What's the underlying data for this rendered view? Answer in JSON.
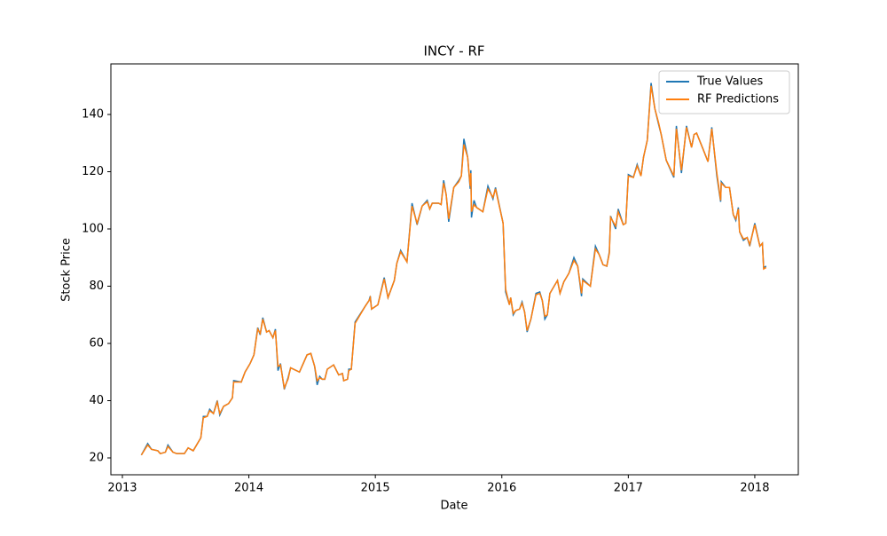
{
  "chart_data": {
    "type": "line",
    "title": "INCY - RF",
    "xlabel": "Date",
    "ylabel": "Stock Price",
    "x": [
      2013.15,
      2013.2,
      2013.23,
      2013.28,
      2013.3,
      2013.34,
      2013.36,
      2013.4,
      2013.43,
      2013.49,
      2013.52,
      2013.56,
      2013.62,
      2013.64,
      2013.67,
      2013.69,
      2013.72,
      2013.75,
      2013.77,
      2013.8,
      2013.84,
      2013.87,
      2013.88,
      2013.94,
      2013.97,
      2014.01,
      2014.04,
      2014.07,
      2014.09,
      2014.11,
      2014.14,
      2014.16,
      2014.19,
      2014.21,
      2014.23,
      2014.25,
      2014.28,
      2014.31,
      2014.33,
      2014.4,
      2014.46,
      2014.49,
      2014.52,
      2014.54,
      2014.56,
      2014.58,
      2014.6,
      2014.62,
      2014.67,
      2014.71,
      2014.74,
      2014.75,
      2014.78,
      2014.79,
      2014.81,
      2014.84,
      2014.92,
      2014.95,
      2014.96,
      2014.97,
      2015.02,
      2015.07,
      2015.1,
      2015.15,
      2015.17,
      2015.2,
      2015.25,
      2015.29,
      2015.33,
      2015.37,
      2015.41,
      2015.43,
      2015.45,
      2015.5,
      2015.52,
      2015.54,
      2015.56,
      2015.58,
      2015.62,
      2015.66,
      2015.68,
      2015.7,
      2015.73,
      2015.75,
      2015.755,
      2015.76,
      2015.78,
      2015.8,
      2015.85,
      2015.89,
      2015.93,
      2015.95,
      2016.01,
      2016.03,
      2016.06,
      2016.07,
      2016.09,
      2016.11,
      2016.14,
      2016.16,
      2016.18,
      2016.2,
      2016.23,
      2016.27,
      2016.3,
      2016.32,
      2016.34,
      2016.36,
      2016.38,
      2016.44,
      2016.46,
      2016.49,
      2016.53,
      2016.57,
      2016.6,
      2016.63,
      2016.64,
      2016.7,
      2016.74,
      2016.77,
      2016.8,
      2016.83,
      2016.85,
      2016.86,
      2016.9,
      2016.92,
      2016.96,
      2016.98,
      2017.0,
      2017.04,
      2017.07,
      2017.1,
      2017.12,
      2017.15,
      2017.18,
      2017.21,
      2017.24,
      2017.26,
      2017.3,
      2017.36,
      2017.38,
      2017.42,
      2017.46,
      2017.5,
      2017.52,
      2017.54,
      2017.59,
      2017.63,
      2017.66,
      2017.7,
      2017.73,
      2017.735,
      2017.77,
      2017.8,
      2017.83,
      2017.85,
      2017.87,
      2017.88,
      2017.91,
      2017.94,
      2017.96,
      2018.0,
      2018.04,
      2018.06,
      2018.07,
      2018.09
    ],
    "series": [
      {
        "name": "True Values",
        "color": "#1f77b4",
        "values": [
          21,
          25,
          23,
          22.5,
          21.5,
          22,
          24.5,
          22,
          21.5,
          21.5,
          23.5,
          22.5,
          27,
          34.5,
          34.5,
          37,
          35.5,
          40,
          35,
          38,
          39,
          41,
          47,
          46.5,
          50,
          53,
          56,
          65.5,
          63,
          69,
          64,
          64.5,
          62,
          65,
          50.5,
          53,
          44,
          48,
          51.5,
          50,
          56,
          56.5,
          52,
          45.5,
          48.5,
          47.5,
          47.5,
          51,
          52.5,
          49,
          49.5,
          47,
          47.5,
          51,
          51,
          67.5,
          73,
          75,
          76.5,
          72,
          73.5,
          83,
          76,
          82,
          88,
          92.5,
          88.5,
          109,
          101.5,
          108,
          110,
          107,
          109,
          109,
          108.5,
          117,
          112,
          102.5,
          114.5,
          117,
          118.5,
          131.5,
          125,
          114,
          120.5,
          104,
          110,
          107.5,
          106,
          115,
          110.5,
          114.5,
          102,
          78,
          73.5,
          76,
          70,
          71.5,
          72,
          74.5,
          71,
          64,
          68.5,
          77.5,
          78,
          75,
          68.5,
          70,
          77.5,
          82,
          77.5,
          81.5,
          84.5,
          90,
          87,
          76.5,
          82.5,
          80,
          94,
          91,
          87.5,
          87,
          92,
          104.5,
          100,
          107,
          101.5,
          102,
          119,
          118,
          122.5,
          118.5,
          125,
          131,
          151,
          142,
          136.5,
          133,
          124,
          118,
          136,
          119.5,
          136,
          128.5,
          133,
          133.5,
          128,
          123.5,
          135.5,
          118.5,
          109.5,
          116.5,
          114.5,
          114.5,
          105,
          103,
          107.5,
          99,
          96,
          97,
          94,
          102,
          94,
          95,
          86.5,
          87
        ]
      },
      {
        "name": "RF Predictions",
        "color": "#ff7f0e",
        "values": [
          21,
          24.5,
          23,
          22.5,
          21.5,
          22,
          24,
          22,
          21.5,
          21.5,
          23.5,
          22.5,
          27,
          34,
          34.5,
          36.5,
          35.5,
          39.5,
          35.5,
          38,
          39,
          41,
          46.5,
          46.5,
          50,
          53,
          56,
          65,
          63.5,
          68.5,
          64,
          64.5,
          62,
          64.5,
          52,
          52.5,
          44.5,
          47.5,
          51.5,
          50,
          56,
          56.5,
          52,
          47,
          48,
          47.5,
          47.5,
          51,
          52.5,
          49,
          49.5,
          47,
          47.5,
          50.5,
          51,
          67,
          73,
          75,
          76,
          72,
          73.5,
          82.5,
          76,
          82,
          88,
          92,
          88.5,
          108,
          102,
          108,
          109.5,
          107,
          109,
          109,
          108.5,
          116,
          112,
          103.5,
          114.5,
          116.5,
          118.5,
          129.5,
          125,
          115,
          119.5,
          106,
          108.5,
          107.5,
          106,
          114,
          111,
          114,
          102,
          79,
          73.5,
          76,
          70.5,
          71.5,
          72,
          74,
          71,
          64.5,
          68.5,
          77,
          77.5,
          75,
          69.5,
          70,
          77.5,
          82,
          77.5,
          81.5,
          84.5,
          89,
          87,
          77.5,
          82,
          80,
          93,
          91,
          87.5,
          87,
          91.5,
          104,
          101,
          106,
          101.5,
          102,
          118.5,
          118,
          122,
          118.5,
          125,
          131,
          150,
          142,
          137,
          133,
          124,
          118.5,
          135,
          120.5,
          135.5,
          128.5,
          133,
          133.5,
          128,
          123.5,
          135,
          119.5,
          110,
          116,
          114.5,
          114.5,
          105,
          103.5,
          107,
          99,
          96.5,
          97,
          94.5,
          101.5,
          94,
          95,
          86,
          86.5
        ]
      }
    ],
    "xlim": [
      2012.909,
      2018.344
    ],
    "xticks": [
      2013,
      2014,
      2015,
      2016,
      2017,
      2018
    ],
    "ylim": [
      14.11,
      157.67
    ],
    "yticks": [
      20,
      40,
      60,
      80,
      100,
      120,
      140
    ],
    "legend": "upper right"
  }
}
